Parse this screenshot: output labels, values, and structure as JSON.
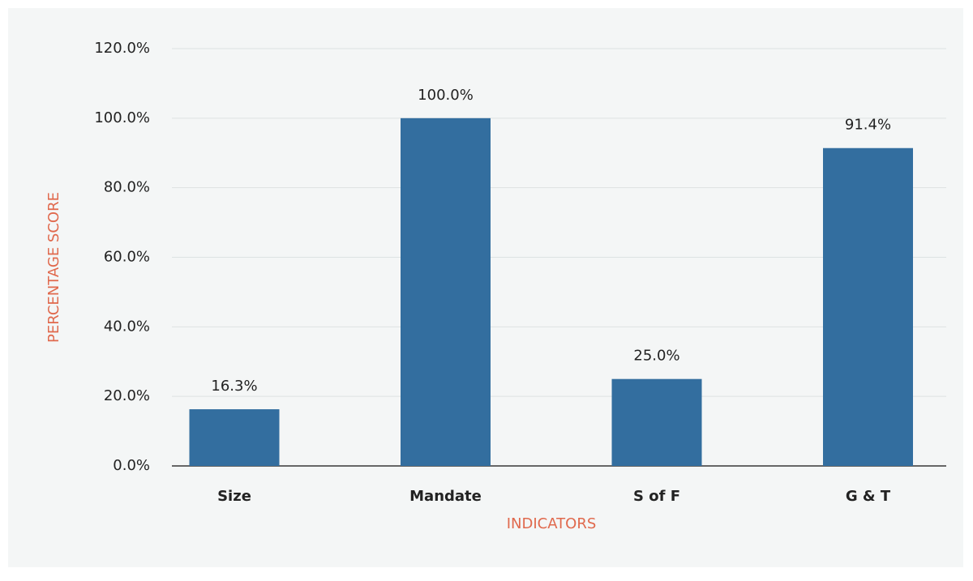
{
  "chart_data": {
    "type": "bar",
    "xlabel": "INDICATORS",
    "ylabel": "PERCENTAGE SCORE",
    "categories": [
      "Size",
      "Mandate",
      "S of F",
      "G & T"
    ],
    "values": [
      16.3,
      100,
      25,
      91.4
    ],
    "value_labels": [
      "16.3%",
      "100.0%",
      "25.0%",
      "91.4%"
    ],
    "color": "#336e9f",
    "ylim": [
      0,
      120
    ],
    "yticks": [
      {
        "value": 0,
        "label": "0.0%"
      },
      {
        "value": 20,
        "label": "20.0%"
      },
      {
        "value": 40,
        "label": "40.0%"
      },
      {
        "value": 60,
        "label": "60.0%"
      },
      {
        "value": 80,
        "label": "80.0%"
      },
      {
        "value": 100,
        "label": "100.0%"
      },
      {
        "value": 120,
        "label": "120.0%"
      }
    ],
    "grid": true
  }
}
